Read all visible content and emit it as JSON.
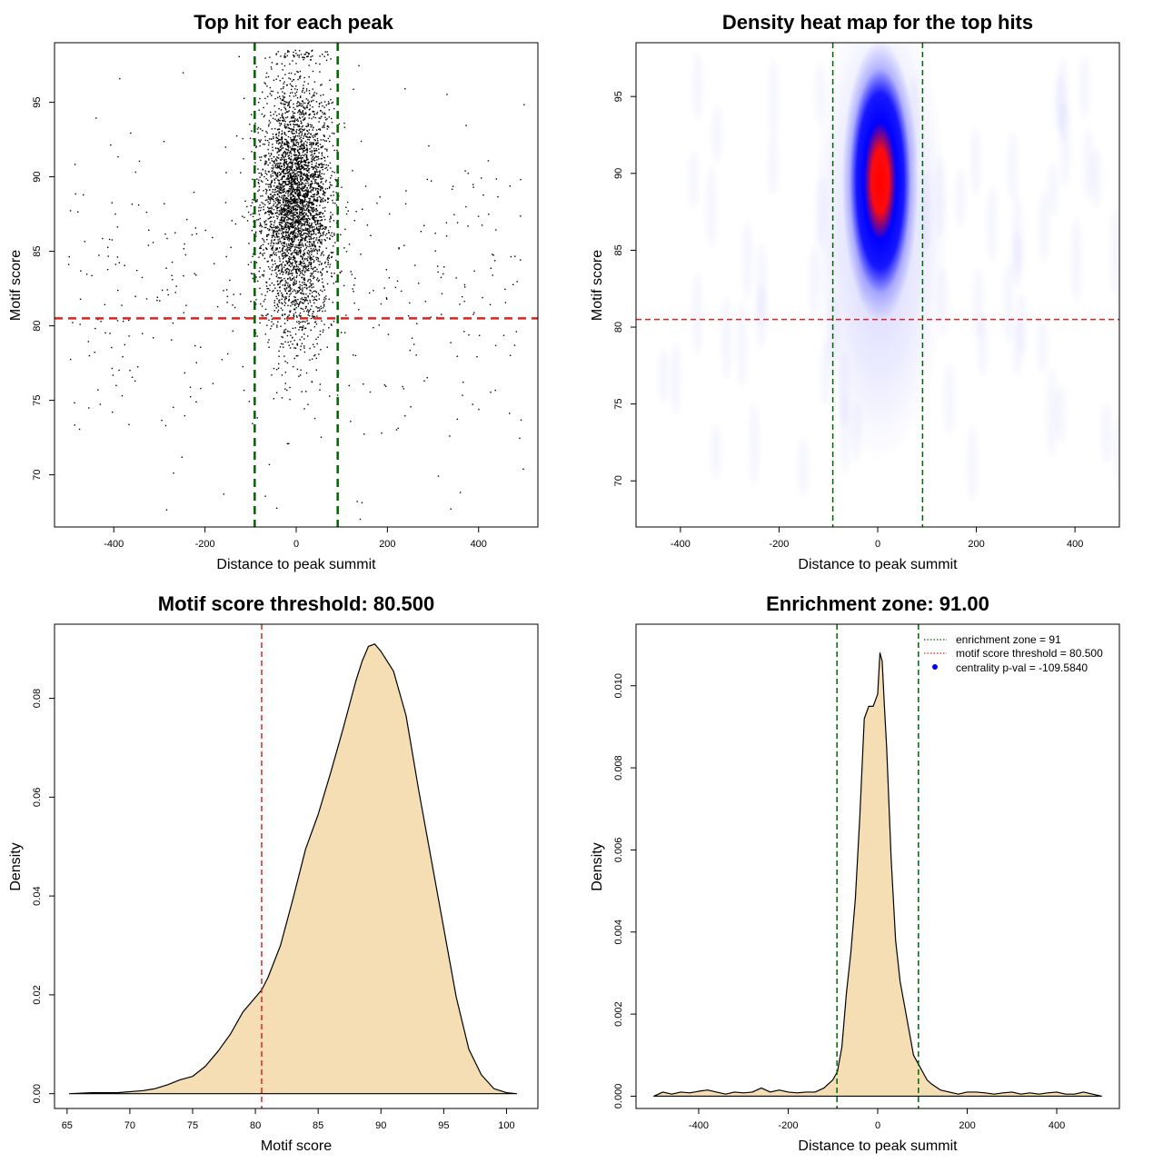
{
  "colors": {
    "vline": "#006400",
    "hline": "#dd2222",
    "fill": "#f5deb3",
    "heat_low": "#ffffff",
    "heat_mid": "#0000ff",
    "heat_high": "#ff0000",
    "legend_dot": "#0000ff"
  },
  "chart_data": [
    {
      "id": "scatter",
      "type": "scatter",
      "title": "Top hit for each peak",
      "xlabel": "Distance to peak summit",
      "ylabel": "Motif score",
      "xlim": [
        -530,
        530
      ],
      "ylim": [
        66.5,
        99
      ],
      "xticks": [
        -400,
        -200,
        0,
        200,
        400
      ],
      "xtick_labels": [
        "-400",
        "-200",
        "0",
        "200",
        "400"
      ],
      "yticks": [
        70,
        75,
        80,
        85,
        90,
        95
      ],
      "ytick_labels": [
        "70",
        "75",
        "80",
        "85",
        "90",
        "95"
      ],
      "vlines": [
        -91,
        91
      ],
      "hline": 80.5,
      "point_color": "#000000",
      "central_distribution": {
        "x_center": 0,
        "x_sd": 38,
        "y_center": 88.3,
        "y_sd": 4.2,
        "n": 3800
      },
      "background_distribution": {
        "x_range": [
          -500,
          500
        ],
        "y_center": 82.5,
        "y_sd": 5.5,
        "n": 420
      }
    },
    {
      "id": "heatmap",
      "type": "heatmap",
      "title": "Density heat map for the top hits",
      "xlabel": "Distance to peak summit",
      "ylabel": "Motif score",
      "xlim": [
        -490,
        490
      ],
      "ylim": [
        67,
        98.5
      ],
      "xticks": [
        -400,
        -200,
        0,
        200,
        400
      ],
      "xtick_labels": [
        "-400",
        "-200",
        "0",
        "200",
        "400"
      ],
      "yticks": [
        70,
        75,
        80,
        85,
        90,
        95
      ],
      "ytick_labels": [
        "70",
        "75",
        "80",
        "85",
        "90",
        "95"
      ],
      "vlines": [
        -91,
        91
      ],
      "hline": 80.5,
      "density_peak": {
        "x": 5,
        "y": 89.5
      }
    },
    {
      "id": "density_score",
      "type": "area",
      "title": "Motif score threshold: 80.500",
      "xlabel": "Motif score",
      "ylabel": "Density",
      "xlim": [
        64,
        102.5
      ],
      "ylim": [
        -0.003,
        0.095
      ],
      "xticks": [
        65,
        70,
        75,
        80,
        85,
        90,
        95,
        100
      ],
      "xtick_labels": [
        "65",
        "70",
        "75",
        "80",
        "85",
        "90",
        "95",
        "100"
      ],
      "yticks": [
        0,
        0.02,
        0.04,
        0.06,
        0.08
      ],
      "ytick_labels": [
        "0.00",
        "0.02",
        "0.04",
        "0.06",
        "0.08"
      ],
      "vline": 80.5,
      "x": [
        65.2,
        67,
        69,
        71,
        72,
        73,
        74,
        75,
        76,
        77,
        78,
        79,
        80,
        80.5,
        81,
        82,
        83,
        84,
        85,
        86,
        87,
        88,
        88.5,
        89,
        89.5,
        90,
        91,
        92,
        93,
        94,
        95,
        96,
        97,
        98,
        99,
        100,
        100.8
      ],
      "y": [
        0.0,
        0.0002,
        0.0002,
        0.0006,
        0.001,
        0.0018,
        0.0028,
        0.0035,
        0.0055,
        0.0085,
        0.012,
        0.0165,
        0.0195,
        0.021,
        0.0235,
        0.03,
        0.0395,
        0.0495,
        0.0565,
        0.065,
        0.074,
        0.0835,
        0.0875,
        0.0905,
        0.091,
        0.0895,
        0.0855,
        0.0765,
        0.0615,
        0.0475,
        0.0335,
        0.0195,
        0.009,
        0.0038,
        0.001,
        0.0002,
        0.0
      ]
    },
    {
      "id": "density_distance",
      "type": "area",
      "title": "Enrichment zone: 91.00",
      "xlabel": "Distance to peak summit",
      "ylabel": "Density",
      "xlim": [
        -540,
        540
      ],
      "ylim": [
        -0.0003,
        0.0115
      ],
      "xticks": [
        -400,
        -200,
        0,
        200,
        400
      ],
      "xtick_labels": [
        "-400",
        "-200",
        "0",
        "200",
        "400"
      ],
      "yticks": [
        0,
        0.002,
        0.004,
        0.006,
        0.008,
        0.01
      ],
      "ytick_labels": [
        "0.000",
        "0.002",
        "0.004",
        "0.006",
        "0.008",
        "0.010"
      ],
      "vlines": [
        -91,
        91
      ],
      "x": [
        -500,
        -480,
        -460,
        -440,
        -420,
        -400,
        -380,
        -360,
        -340,
        -320,
        -300,
        -280,
        -260,
        -240,
        -220,
        -200,
        -180,
        -160,
        -140,
        -120,
        -110,
        -100,
        -90,
        -80,
        -70,
        -60,
        -50,
        -40,
        -30,
        -20,
        -10,
        0,
        5,
        10,
        15,
        20,
        30,
        40,
        50,
        60,
        70,
        80,
        90,
        100,
        110,
        120,
        140,
        160,
        180,
        200,
        220,
        240,
        260,
        280,
        300,
        320,
        340,
        360,
        380,
        400,
        420,
        440,
        460,
        480,
        500
      ],
      "y": [
        0.0,
        0.0001,
        5e-05,
        0.0001,
        8e-05,
        0.00012,
        0.00015,
        0.0001,
        5e-05,
        0.0001,
        8e-05,
        0.0001,
        0.0002,
        0.0001,
        0.00015,
        0.0001,
        8e-05,
        0.0001,
        0.0001,
        0.0002,
        0.0003,
        0.0004,
        0.0006,
        0.0012,
        0.0025,
        0.0035,
        0.0048,
        0.0068,
        0.0092,
        0.0095,
        0.0095,
        0.0098,
        0.0108,
        0.0106,
        0.0095,
        0.0085,
        0.0058,
        0.0038,
        0.0028,
        0.0022,
        0.0016,
        0.001,
        0.0008,
        0.0006,
        0.0004,
        0.0003,
        0.00015,
        0.0001,
        5e-05,
        0.0001,
        0.0001,
        8e-05,
        5e-05,
        8e-05,
        0.0001,
        5e-05,
        8e-05,
        5e-05,
        8e-05,
        0.0001,
        5e-05,
        5e-05,
        0.0001,
        5e-05,
        0.0
      ]
    }
  ],
  "legend": {
    "items": [
      {
        "label": "enrichment zone = 91",
        "kind": "dotted-line",
        "color": "#006400"
      },
      {
        "label": "motif score threshold = 80.500",
        "kind": "dotted-line",
        "color": "#dd2222"
      },
      {
        "label": "centrality p-val = -109.5840",
        "kind": "dot",
        "color": "#0000ff"
      }
    ]
  }
}
